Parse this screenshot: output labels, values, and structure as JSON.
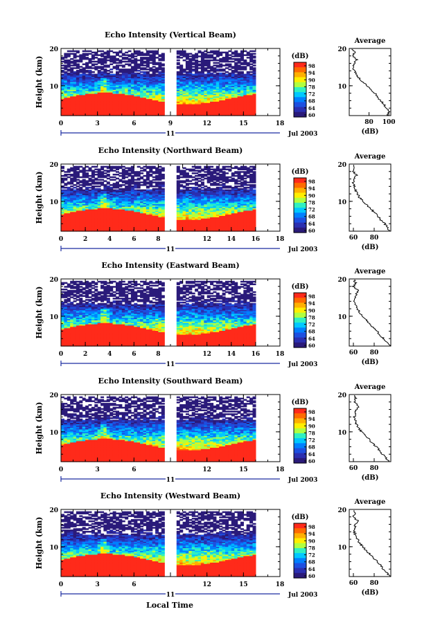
{
  "figure": {
    "xlabel": "Local Time",
    "date_label": "Jul 2003",
    "day_label": "11"
  },
  "colorbar": {
    "unit_label": "(dB)",
    "tick_labels": [
      "98",
      "94",
      "90",
      "78",
      "72",
      "68",
      "64",
      "60"
    ],
    "colors": [
      "#ff2a1a",
      "#ff6a00",
      "#ffb000",
      "#ffee00",
      "#b0ff40",
      "#30f0c0",
      "#00c8ff",
      "#0080ff",
      "#1d4fe0",
      "#2b2fb0",
      "#2a1a7a"
    ]
  },
  "chart_data": [
    {
      "type": "heatmap",
      "title": "Echo Intensity (Vertical Beam)",
      "ylabel": "Height (km)",
      "xlim": [
        0,
        18
      ],
      "ylim": [
        2,
        20
      ],
      "xticks": [
        0,
        3,
        6,
        9,
        12,
        15,
        18
      ],
      "xtick_labels": [
        "0",
        "3",
        "6",
        "9",
        "12",
        "15",
        "18"
      ],
      "yticks": [
        10,
        20
      ],
      "ytick_labels": [
        "10",
        "20"
      ],
      "data_gap_hours": [
        8.5,
        9.5
      ],
      "data_end_hour": 16
    },
    {
      "type": "heatmap",
      "title": "Echo Intensity (Northward Beam)",
      "ylabel": "Height (km)",
      "xlim": [
        0,
        18
      ],
      "ylim": [
        2,
        20
      ],
      "xticks": [
        0,
        2,
        4,
        6,
        8,
        10,
        12,
        14,
        16,
        18
      ],
      "xtick_labels": [
        "0",
        "2",
        "4",
        "6",
        "8",
        "",
        "12",
        "14",
        "16",
        "18"
      ],
      "yticks": [
        10,
        20
      ],
      "ytick_labels": [
        "10",
        "20"
      ],
      "data_gap_hours": [
        8.5,
        9.5
      ],
      "data_end_hour": 16
    },
    {
      "type": "heatmap",
      "title": "Echo Intensity (Eastward Beam)",
      "ylabel": "Height (km)",
      "xlim": [
        0,
        18
      ],
      "ylim": [
        2,
        20
      ],
      "xticks": [
        0,
        2,
        4,
        6,
        8,
        10,
        12,
        14,
        16,
        18
      ],
      "xtick_labels": [
        "0",
        "2",
        "4",
        "6",
        "8",
        "",
        "12",
        "14",
        "16",
        "18"
      ],
      "yticks": [
        10,
        20
      ],
      "ytick_labels": [
        "10",
        "20"
      ],
      "data_gap_hours": [
        8.5,
        9.5
      ],
      "data_end_hour": 16
    },
    {
      "type": "heatmap",
      "title": "Echo Intensity (Southward Beam)",
      "ylabel": "Height (km)",
      "xlim": [
        0,
        18
      ],
      "ylim": [
        2,
        20
      ],
      "xticks": [
        0,
        3,
        6,
        9,
        12,
        15,
        18
      ],
      "xtick_labels": [
        "0",
        "3",
        "6",
        "",
        "12",
        "15",
        "18"
      ],
      "yticks": [
        10,
        20
      ],
      "ytick_labels": [
        "10",
        "20"
      ],
      "data_gap_hours": [
        8.5,
        9.5
      ],
      "data_end_hour": 16
    },
    {
      "type": "heatmap",
      "title": "Echo Intensity (Westward Beam)",
      "ylabel": "Height (km)",
      "xlim": [
        0,
        18
      ],
      "ylim": [
        2,
        20
      ],
      "xticks": [
        0,
        3,
        6,
        9,
        12,
        15,
        18
      ],
      "xtick_labels": [
        "0",
        "3",
        "6",
        "",
        "12",
        "15",
        "18"
      ],
      "yticks": [
        10,
        20
      ],
      "ytick_labels": [
        "10",
        "20"
      ],
      "data_gap_hours": [
        8.5,
        9.5
      ],
      "data_end_hour": 16
    },
    {
      "type": "line",
      "title": "Average",
      "xlabel": "(dB)",
      "xtick_values": [
        80,
        100
      ],
      "xtick_labels": [
        "80",
        "100"
      ],
      "xlim": [
        60,
        102
      ],
      "ylim": [
        2,
        20
      ],
      "ytick_labels": [
        "10",
        "20"
      ],
      "height_km": [
        2,
        3,
        4,
        5,
        6,
        7,
        8,
        9,
        10,
        11,
        12,
        13,
        14,
        15,
        16,
        17,
        18,
        19,
        20
      ],
      "values_db": [
        99,
        100,
        98,
        95,
        92,
        88,
        86,
        82,
        78,
        74,
        70,
        67,
        65,
        64,
        65,
        68,
        63,
        66,
        62
      ]
    },
    {
      "type": "line",
      "title": "Average",
      "xlabel": "(dB)",
      "xtick_values": [
        60,
        80
      ],
      "xtick_labels": [
        "60",
        "80"
      ],
      "xlim": [
        56,
        96
      ],
      "ylim": [
        2,
        20
      ],
      "ytick_labels": [
        "10",
        "20"
      ],
      "height_km": [
        2,
        3,
        4,
        5,
        6,
        7,
        8,
        9,
        10,
        11,
        12,
        13,
        14,
        15,
        16,
        17,
        18,
        19,
        20
      ],
      "values_db": [
        95,
        93,
        90,
        86,
        84,
        80,
        77,
        73,
        70,
        66,
        64,
        62,
        61,
        60,
        61,
        63,
        60,
        61,
        60
      ]
    },
    {
      "type": "line",
      "title": "Average",
      "xlabel": "(dB)",
      "xtick_values": [
        60,
        80
      ],
      "xtick_labels": [
        "60",
        "80"
      ],
      "xlim": [
        56,
        96
      ],
      "ylim": [
        2,
        20
      ],
      "ytick_labels": [
        "10",
        "20"
      ],
      "height_km": [
        2,
        3,
        4,
        5,
        6,
        7,
        8,
        9,
        10,
        11,
        12,
        13,
        14,
        15,
        16,
        17,
        18,
        19,
        20
      ],
      "values_db": [
        95,
        92,
        89,
        85,
        83,
        79,
        76,
        72,
        69,
        66,
        64,
        62,
        61,
        62,
        63,
        64,
        60,
        62,
        60
      ]
    },
    {
      "type": "line",
      "title": "Average",
      "xlabel": "(dB)",
      "xtick_values": [
        60,
        80
      ],
      "xtick_labels": [
        "60",
        "80"
      ],
      "xlim": [
        56,
        96
      ],
      "ylim": [
        2,
        20
      ],
      "ytick_labels": [
        "10",
        "20"
      ],
      "height_km": [
        2,
        3,
        4,
        5,
        6,
        7,
        8,
        9,
        10,
        11,
        12,
        13,
        14,
        15,
        16,
        17,
        18,
        19,
        20
      ],
      "values_db": [
        94,
        91,
        88,
        85,
        82,
        78,
        75,
        71,
        68,
        65,
        63,
        62,
        61,
        62,
        63,
        65,
        61,
        62,
        60
      ]
    },
    {
      "type": "line",
      "title": "Average",
      "xlabel": "(dB)",
      "xtick_values": [
        60,
        80
      ],
      "xtick_labels": [
        "60",
        "80"
      ],
      "xlim": [
        56,
        96
      ],
      "ylim": [
        2,
        20
      ],
      "ytick_labels": [
        "10",
        "20"
      ],
      "height_km": [
        2,
        3,
        4,
        5,
        6,
        7,
        8,
        9,
        10,
        11,
        12,
        13,
        14,
        15,
        16,
        17,
        18,
        19,
        20
      ],
      "values_db": [
        95,
        92,
        89,
        86,
        83,
        79,
        76,
        72,
        69,
        66,
        64,
        62,
        61,
        61,
        62,
        64,
        60,
        61,
        60
      ]
    }
  ]
}
